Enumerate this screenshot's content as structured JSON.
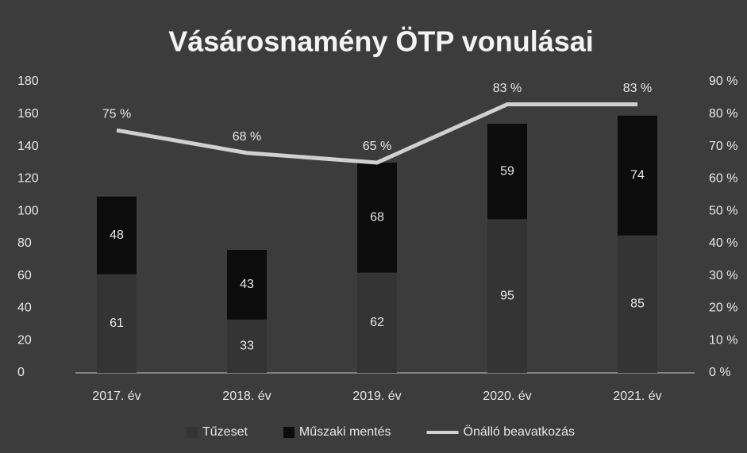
{
  "chart_data": {
    "type": "bar",
    "title": "Vásárosnamény ÖTP vonulásai",
    "categories": [
      "2017. év",
      "2018. év",
      "2019. év",
      "2020. év",
      "2021. év"
    ],
    "series": [
      {
        "name": "Tűzeset",
        "type": "bar",
        "color": "#343434",
        "values": [
          61,
          33,
          62,
          95,
          85
        ]
      },
      {
        "name": "Műszaki mentés",
        "type": "bar",
        "color": "#0c0c0c",
        "values": [
          48,
          43,
          68,
          59,
          74
        ]
      },
      {
        "name": "Önálló beavatkozás",
        "type": "line",
        "axis": "y2",
        "color": "#d0d0d0",
        "values": [
          75,
          68,
          65,
          83,
          83
        ],
        "value_labels": [
          "75 %",
          "68 %",
          "65 %",
          "83 %",
          "83 %"
        ]
      }
    ],
    "stacked": true,
    "ylim": [
      0,
      180
    ],
    "yticks": [
      0,
      20,
      40,
      60,
      80,
      100,
      120,
      140,
      160,
      180
    ],
    "y2lim": [
      0,
      90
    ],
    "y2ticks": [
      {
        "value": 0,
        "label": "0 %"
      },
      {
        "value": 10,
        "label": "10 %"
      },
      {
        "value": 20,
        "label": "20 %"
      },
      {
        "value": 30,
        "label": "30 %"
      },
      {
        "value": 40,
        "label": "40 %"
      },
      {
        "value": 50,
        "label": "50 %"
      },
      {
        "value": 60,
        "label": "60 %"
      },
      {
        "value": 70,
        "label": "70 %"
      },
      {
        "value": 80,
        "label": "80 %"
      },
      {
        "value": 90,
        "label": "90 %"
      }
    ],
    "legend": "bottom"
  }
}
